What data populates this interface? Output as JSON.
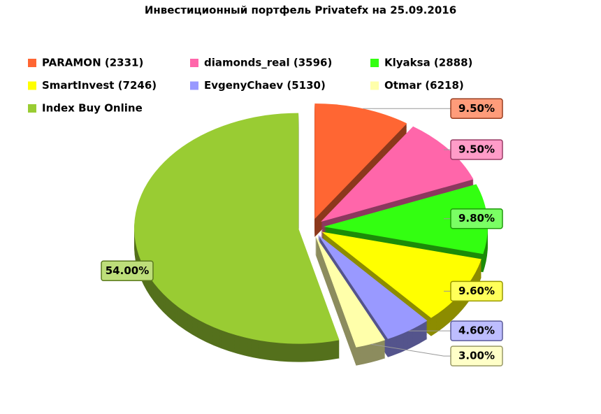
{
  "chart_data": {
    "type": "pie",
    "title": "Инвестиционный портфель Privatefx на 25.09.2016",
    "categories": [
      "PARAMON (2331)",
      "diamonds_real (3596)",
      "Klyaksa (2888)",
      "SmartInvest (7246)",
      "EvgenyChaev (5130)",
      "Otmar (6218)",
      "Index Buy Online"
    ],
    "values": [
      9.5,
      9.5,
      9.8,
      9.6,
      4.6,
      3.0,
      54.0
    ],
    "value_labels": [
      "9.50%",
      "9.50%",
      "9.80%",
      "9.60%",
      "4.60%",
      "3.00%",
      "54.00%"
    ],
    "colors": [
      "#ff6633",
      "#ff66aa",
      "#33ff11",
      "#ffff00",
      "#9999ff",
      "#ffffaa",
      "#99cc33"
    ],
    "legend": "top"
  }
}
